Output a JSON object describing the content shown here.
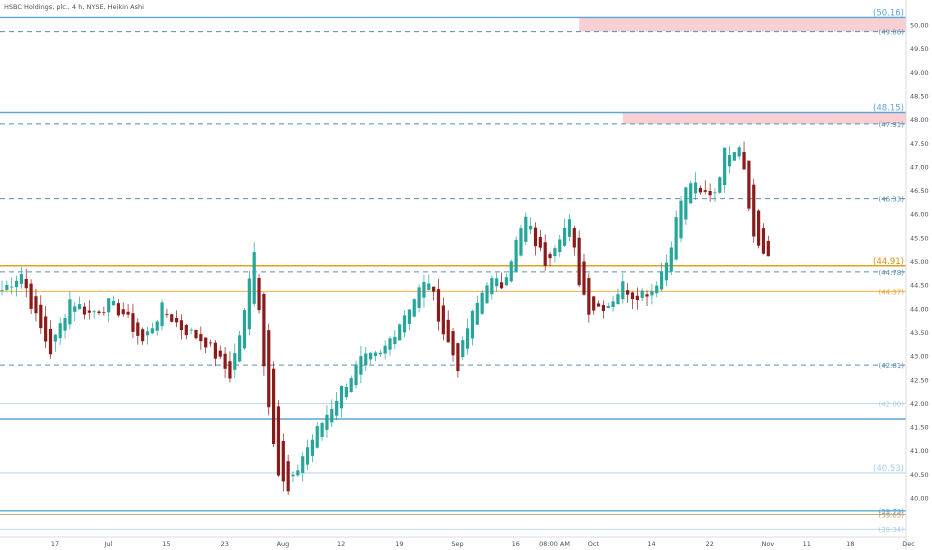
{
  "chart_data": {
    "type": "candlestick",
    "title": "HSBC Holdings, plc., 4 h, NYSE, Heikin Ashi",
    "y_axis_side": "right",
    "ylim": [
      39.1,
      50.2
    ],
    "y_ticks": [
      {
        "value": 40.0,
        "label": "40.00"
      },
      {
        "value": 40.5,
        "label": "40.50"
      },
      {
        "value": 41.0,
        "label": "41.00"
      },
      {
        "value": 41.5,
        "label": "41.50"
      },
      {
        "value": 42.0,
        "label": "42.00"
      },
      {
        "value": 42.5,
        "label": "42.50"
      },
      {
        "value": 43.0,
        "label": "43.00"
      },
      {
        "value": 43.5,
        "label": "43.50"
      },
      {
        "value": 44.0,
        "label": "44.00"
      },
      {
        "value": 44.5,
        "label": "44.50"
      },
      {
        "value": 45.0,
        "label": "45.00"
      },
      {
        "value": 45.5,
        "label": "45.50"
      },
      {
        "value": 46.0,
        "label": "46.00"
      },
      {
        "value": 46.5,
        "label": "46.50"
      },
      {
        "value": 47.0,
        "label": "47.00"
      },
      {
        "value": 47.5,
        "label": "47.50"
      },
      {
        "value": 48.0,
        "label": "48.00"
      },
      {
        "value": 48.5,
        "label": "48.50"
      },
      {
        "value": 49.0,
        "label": "49.00"
      },
      {
        "value": 49.5,
        "label": "49.50"
      },
      {
        "value": 50.0,
        "label": "50.00"
      }
    ],
    "x_ticks": [
      {
        "index": 0,
        "label": "17"
      },
      {
        "index": 11,
        "label": "Jul"
      },
      {
        "index": 23,
        "label": "15"
      },
      {
        "index": 35,
        "label": "23"
      },
      {
        "index": 47,
        "label": "Aug"
      },
      {
        "index": 59,
        "label": "12"
      },
      {
        "index": 71,
        "label": "19"
      },
      {
        "index": 83,
        "label": "Sep"
      },
      {
        "index": 95,
        "label": "16"
      },
      {
        "index": 103,
        "label": "08:00 AM"
      },
      {
        "index": 111,
        "label": "Oct"
      },
      {
        "index": 123,
        "label": "14"
      },
      {
        "index": 135,
        "label": "22"
      },
      {
        "index": 147,
        "label": "Nov"
      },
      {
        "index": 155,
        "label": "11"
      },
      {
        "index": 164,
        "label": "18"
      },
      {
        "index": 176,
        "label": "Dec"
      }
    ],
    "x_slots": 182,
    "up_color": "#26a69a",
    "down_color": "#8b1a1a",
    "key_points": [
      [
        0,
        44.4
      ],
      [
        4,
        44.75
      ],
      [
        7,
        43.8
      ],
      [
        10,
        43.1
      ],
      [
        14,
        44.2
      ],
      [
        18,
        43.9
      ],
      [
        22,
        44.1
      ],
      [
        25,
        43.9
      ],
      [
        29,
        43.3
      ],
      [
        33,
        44.0
      ],
      [
        37,
        43.6
      ],
      [
        42,
        43.3
      ],
      [
        47,
        42.6
      ],
      [
        50,
        43.9
      ],
      [
        52,
        45.3
      ],
      [
        54,
        42.8
      ],
      [
        57,
        40.5
      ],
      [
        59,
        40.1
      ],
      [
        62,
        40.9
      ],
      [
        66,
        41.6
      ],
      [
        70,
        42.3
      ],
      [
        74,
        42.9
      ],
      [
        78,
        43.0
      ],
      [
        83,
        43.9
      ],
      [
        86,
        44.4
      ],
      [
        88,
        44.6
      ],
      [
        91,
        43.5
      ],
      [
        94,
        42.8
      ],
      [
        96,
        43.6
      ],
      [
        100,
        44.6
      ],
      [
        103,
        44.5
      ],
      [
        106,
        45.4
      ],
      [
        108,
        45.9
      ],
      [
        110,
        45.4
      ],
      [
        112,
        45.0
      ],
      [
        115,
        45.6
      ],
      [
        117,
        45.8
      ],
      [
        119,
        44.6
      ],
      [
        121,
        44.0
      ],
      [
        125,
        44.1
      ],
      [
        128,
        44.5
      ],
      [
        130,
        44.3
      ],
      [
        134,
        44.4
      ],
      [
        137,
        45.0
      ],
      [
        140,
        46.3
      ],
      [
        142,
        46.7
      ],
      [
        144,
        46.4
      ],
      [
        147,
        46.5
      ],
      [
        149,
        47.3
      ],
      [
        152,
        47.5
      ],
      [
        153,
        47.0
      ],
      [
        155,
        45.5
      ],
      [
        157,
        45.2
      ],
      [
        158,
        45.1
      ]
    ],
    "levels": [
      {
        "value": 50.16,
        "label": "(50.16)",
        "color": "#5ba7d6",
        "style": "solid",
        "label_size": "large"
      },
      {
        "value": 49.86,
        "label": "(49.86)",
        "color": "#5b8fb5",
        "style": "dashed",
        "label_size": "small"
      },
      {
        "value": 48.15,
        "label": "(48.15)",
        "color": "#5ba7d6",
        "style": "solid",
        "label_size": "large"
      },
      {
        "value": 47.91,
        "label": "(47.91)",
        "color": "#5b8fb5",
        "style": "dashed",
        "label_size": "small"
      },
      {
        "value": 46.33,
        "label": "(46.33)",
        "color": "#5b8fb5",
        "style": "dashed",
        "label_size": "small"
      },
      {
        "value": 44.91,
        "label": "(44.91)",
        "color": "#e0a21a",
        "style": "solid",
        "label_size": "large"
      },
      {
        "value": 44.78,
        "label": "(44.78)",
        "color": "#5b8fb5",
        "style": "dashed",
        "label_size": "small"
      },
      {
        "value": 44.37,
        "label": "(44.37)",
        "color": "#f0a030",
        "style": "thin",
        "label_size": "small"
      },
      {
        "value": 42.81,
        "label": "(42.81)",
        "color": "#5b8fb5",
        "style": "dashed",
        "label_size": "small"
      },
      {
        "value": 42.0,
        "label": "(42.00)",
        "color": "#a8cde6",
        "style": "thin",
        "label_size": "small"
      },
      {
        "value": 41.67,
        "label": "",
        "color": "#5ba7d6",
        "style": "solid",
        "label_size": "small"
      },
      {
        "value": 40.53,
        "label": "(40.53)",
        "color": "#a8cde6",
        "style": "thin",
        "label_size": "large"
      },
      {
        "value": 39.73,
        "label": "(39.73)",
        "color": "#5ba7d6",
        "style": "solid",
        "label_size": "small"
      },
      {
        "value": 39.65,
        "label": "(39.65)",
        "color": "#c59b60",
        "style": "thin",
        "label_size": "small"
      },
      {
        "value": 39.34,
        "label": "(39.34)",
        "color": "#a8cde6",
        "style": "thin",
        "label_size": "small"
      }
    ],
    "zones": [
      {
        "start_index": 119,
        "y_top": 50.16,
        "y_bottom": 49.86,
        "color": "#f8d0d4"
      },
      {
        "start_index": 128,
        "y_top": 48.15,
        "y_bottom": 47.91,
        "color": "#f8d0d4"
      }
    ]
  }
}
